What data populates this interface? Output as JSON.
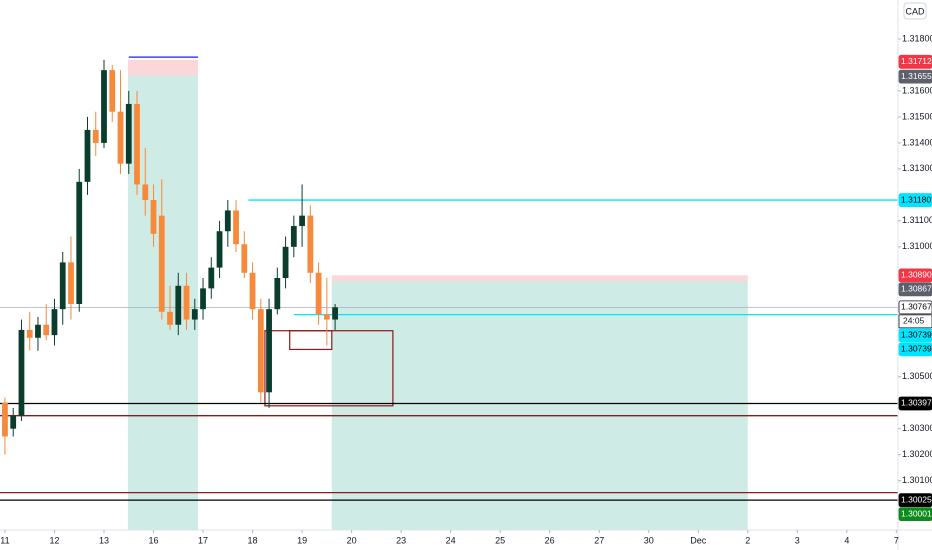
{
  "chart_data": {
    "type": "candlestick",
    "currency": "CAD",
    "countdown": "24:05",
    "up_color": "#0b3d2e",
    "down_color": "#f7893b",
    "grid": false,
    "xlim": [
      -0.6,
      108.2
    ],
    "ylim": [
      1.2991,
      1.3195
    ],
    "xticks": [
      {
        "value": 0,
        "label": "11"
      },
      {
        "value": 6,
        "label": "12"
      },
      {
        "value": 12,
        "label": "13"
      },
      {
        "value": 18,
        "label": "16"
      },
      {
        "value": 24,
        "label": "17"
      },
      {
        "value": 30,
        "label": "18"
      },
      {
        "value": 36,
        "label": "19"
      },
      {
        "value": 42,
        "label": "20"
      },
      {
        "value": 48,
        "label": "23"
      },
      {
        "value": 54,
        "label": "24"
      },
      {
        "value": 60,
        "label": "25"
      },
      {
        "value": 66,
        "label": "26"
      },
      {
        "value": 72,
        "label": "27"
      },
      {
        "value": 78,
        "label": "30"
      },
      {
        "value": 84,
        "label": "Dec"
      },
      {
        "value": 90,
        "label": "2"
      },
      {
        "value": 96,
        "label": "3"
      },
      {
        "value": 102,
        "label": "4"
      },
      {
        "value": 108,
        "label": "7"
      }
    ],
    "yticks": [
      {
        "value": 1.301,
        "label": "1.30100"
      },
      {
        "value": 1.302,
        "label": "1.30200"
      },
      {
        "value": 1.303,
        "label": "1.30300"
      },
      {
        "value": 1.305,
        "label": "1.30500"
      },
      {
        "value": 1.31,
        "label": "1.31000"
      },
      {
        "value": 1.311,
        "label": "1.31100"
      },
      {
        "value": 1.313,
        "label": "1.31300"
      },
      {
        "value": 1.314,
        "label": "1.31400"
      },
      {
        "value": 1.315,
        "label": "1.31500"
      },
      {
        "value": 1.316,
        "label": "1.31600"
      },
      {
        "value": 1.318,
        "label": "1.31800"
      }
    ],
    "open": [
      1.304,
      1.303,
      1.3035,
      1.3068,
      1.3065,
      1.307,
      1.3066,
      1.3076,
      1.3094,
      1.3078,
      1.3125,
      1.3145,
      1.314,
      1.3168,
      1.3152,
      1.3132,
      1.3155,
      1.3124,
      1.3118,
      1.3112,
      1.3075,
      1.307,
      1.3085,
      1.3072,
      1.3076,
      1.3084,
      1.3092,
      1.3106,
      1.3114,
      1.3101,
      1.309,
      1.3076,
      1.3044,
      1.3076,
      1.3088,
      1.31,
      1.3108,
      1.3112,
      1.309,
      1.3074,
      1.3072
    ],
    "high": [
      1.3042,
      1.3038,
      1.3072,
      1.3075,
      1.3073,
      1.3078,
      1.308,
      1.3098,
      1.3104,
      1.313,
      1.315,
      1.3152,
      1.3172,
      1.317,
      1.3168,
      1.316,
      1.316,
      1.3138,
      1.3124,
      1.3126,
      1.3085,
      1.309,
      1.309,
      1.308,
      1.3088,
      1.3096,
      1.311,
      1.3118,
      1.3118,
      1.3106,
      1.3094,
      1.308,
      1.308,
      1.3092,
      1.3104,
      1.3112,
      1.3124,
      1.3116,
      1.3094,
      1.3088,
      1.3078
    ],
    "low": [
      1.302,
      1.3027,
      1.3033,
      1.306,
      1.306,
      1.3064,
      1.3062,
      1.307,
      1.3072,
      1.3075,
      1.312,
      1.3135,
      1.3138,
      1.3148,
      1.3128,
      1.3128,
      1.312,
      1.3112,
      1.31,
      1.3072,
      1.3068,
      1.3066,
      1.3068,
      1.3068,
      1.3072,
      1.308,
      1.3088,
      1.31,
      1.3098,
      1.3088,
      1.3072,
      1.304,
      1.3038,
      1.3074,
      1.3084,
      1.3096,
      1.31,
      1.3086,
      1.307,
      1.3062,
      1.3068
    ],
    "close": [
      1.3027,
      1.3035,
      1.3068,
      1.3065,
      1.307,
      1.3066,
      1.3076,
      1.3094,
      1.3078,
      1.3125,
      1.3145,
      1.314,
      1.3168,
      1.3152,
      1.3132,
      1.3155,
      1.3124,
      1.3118,
      1.3105,
      1.3075,
      1.307,
      1.3085,
      1.3072,
      1.3076,
      1.3084,
      1.3092,
      1.3106,
      1.3114,
      1.3101,
      1.309,
      1.3076,
      1.3044,
      1.3076,
      1.3088,
      1.31,
      1.3108,
      1.3112,
      1.309,
      1.3074,
      1.3072,
      1.30767
    ],
    "zones": [
      {
        "x": [
          14.9,
          23.4
        ],
        "y": [
          1.2991,
          1.3166
        ],
        "color": "rgba(8,153,129,0.2)"
      },
      {
        "x": [
          14.9,
          23.4
        ],
        "y": [
          1.3166,
          1.3172
        ],
        "color": "rgba(242,54,69,0.2)"
      },
      {
        "x": [
          39.6,
          90
        ],
        "y": [
          1.2991,
          1.30867
        ],
        "color": "rgba(8,153,129,0.2)"
      },
      {
        "x": [
          39.6,
          90
        ],
        "y": [
          1.30867,
          1.3089
        ],
        "color": "rgba(242,54,69,0.2)"
      }
    ],
    "boxes": [
      {
        "x": [
          31.5,
          47
        ],
        "y": [
          1.30388,
          1.30677
        ],
        "color": "#8b1a1a"
      },
      {
        "x": [
          34.5,
          39.6
        ],
        "y": [
          1.30605,
          1.30677
        ],
        "color": "#8b1a1a"
      }
    ],
    "levels": [
      {
        "value": 1.3173,
        "x": [
          15,
          23.4
        ],
        "color": "#1a1aff"
      },
      {
        "value": 1.3118,
        "x": [
          29.5,
          108.2
        ],
        "color": "#00e5ff"
      },
      {
        "value": 1.30739,
        "x": [
          35,
          108.2
        ],
        "color": "#00e5ff"
      },
      {
        "value": 1.30767,
        "x": [
          -0.6,
          108.2
        ],
        "color": "#9aa3b5"
      },
      {
        "value": 1.30397,
        "x": [
          -0.6,
          108.2
        ],
        "color": "#000000"
      },
      {
        "value": 1.3035,
        "x": [
          -0.6,
          108.2
        ],
        "color": "#8b1a1a"
      },
      {
        "value": 1.30054,
        "x": [
          -0.6,
          108.2
        ],
        "color": "#8b1a1a"
      },
      {
        "value": 1.30025,
        "x": [
          -0.6,
          108.2
        ],
        "color": "#000000"
      }
    ],
    "price_labels": [
      {
        "value": 1.31712,
        "label": "1.31712",
        "color": "#f23645",
        "text_color": "#ffffff"
      },
      {
        "value": 1.31655,
        "label": "1.31655",
        "color": "#5d606b",
        "text_color": "#ffffff"
      },
      {
        "value": 1.3118,
        "label": "1.31180",
        "color": "#00e5ff",
        "text_color": "#000000"
      },
      {
        "value": 1.3089,
        "label": "1.30890",
        "color": "#f23645",
        "text_color": "#ffffff"
      },
      {
        "value": 1.30867,
        "label": "1.30867",
        "color": "#5d606b",
        "text_color": "#ffffff"
      },
      {
        "value": 1.30767,
        "label": "1.30767",
        "color": "#ffffff",
        "text_color": "#000000"
      },
      {
        "value": 1.30739,
        "label": "1.30739",
        "color": "#00e5ff",
        "text_color": "#000000"
      },
      {
        "value": 1.30739,
        "label": "1.30739",
        "color": "#00e5ff",
        "text_color": "#000000"
      },
      {
        "value": 1.30397,
        "label": "1.30397",
        "color": "#000000",
        "text_color": "#ffffff"
      },
      {
        "value": 1.30025,
        "label": "1.30025",
        "color": "#000000",
        "text_color": "#ffffff"
      },
      {
        "value": 1.30001,
        "label": "1.30001",
        "color": "#0d8c1c",
        "text_color": "#ffffff"
      }
    ]
  }
}
